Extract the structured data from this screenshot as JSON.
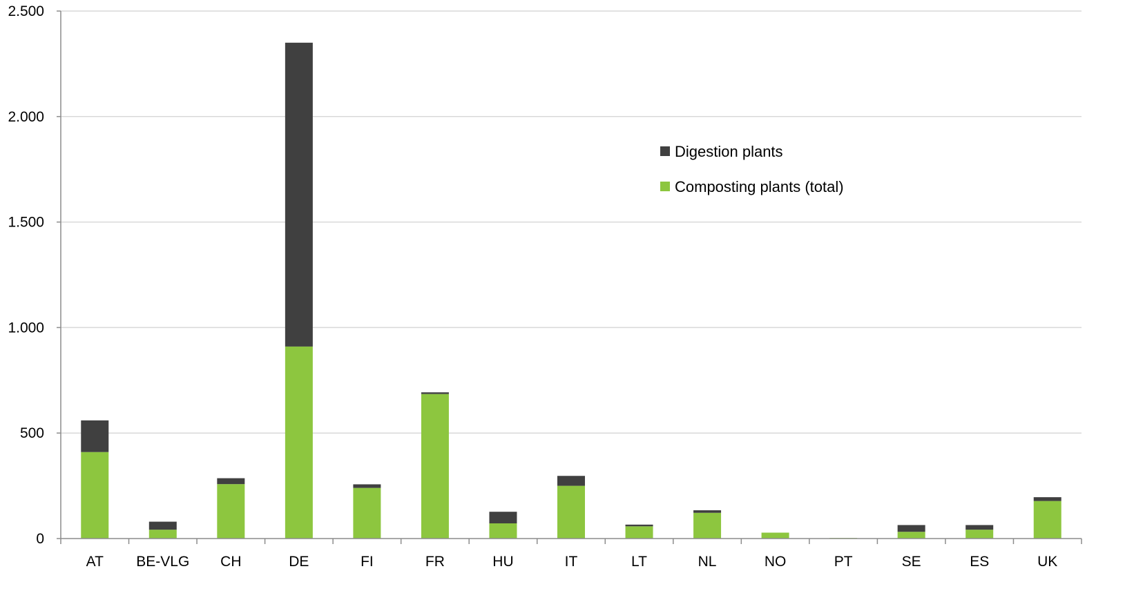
{
  "chart_data": {
    "type": "bar",
    "stacked": true,
    "categories": [
      "AT",
      "BE-VLG",
      "CH",
      "DE",
      "FI",
      "FR",
      "HU",
      "IT",
      "LT",
      "NL",
      "NO",
      "PT",
      "SE",
      "ES",
      "UK"
    ],
    "series": [
      {
        "name": "Composting plants (total)",
        "color": "#8dc63f",
        "values": [
          410,
          42,
          258,
          910,
          240,
          685,
          72,
          250,
          58,
          122,
          28,
          3,
          32,
          42,
          178
        ]
      },
      {
        "name": "Digestion plants",
        "color": "#404040",
        "values": [
          150,
          38,
          28,
          1440,
          17,
          8,
          55,
          47,
          8,
          12,
          0,
          0,
          32,
          22,
          18
        ]
      }
    ],
    "ylim": [
      0,
      2500
    ],
    "yticks": [
      0,
      500,
      1000,
      1500,
      2000,
      2500
    ],
    "ytick_labels": [
      "0",
      "500",
      "1.000",
      "1.500",
      "2.000",
      "2.500"
    ],
    "grid": true,
    "legend_position": "top-right",
    "legend_order": [
      "Digestion plants",
      "Composting plants (total)"
    ]
  }
}
